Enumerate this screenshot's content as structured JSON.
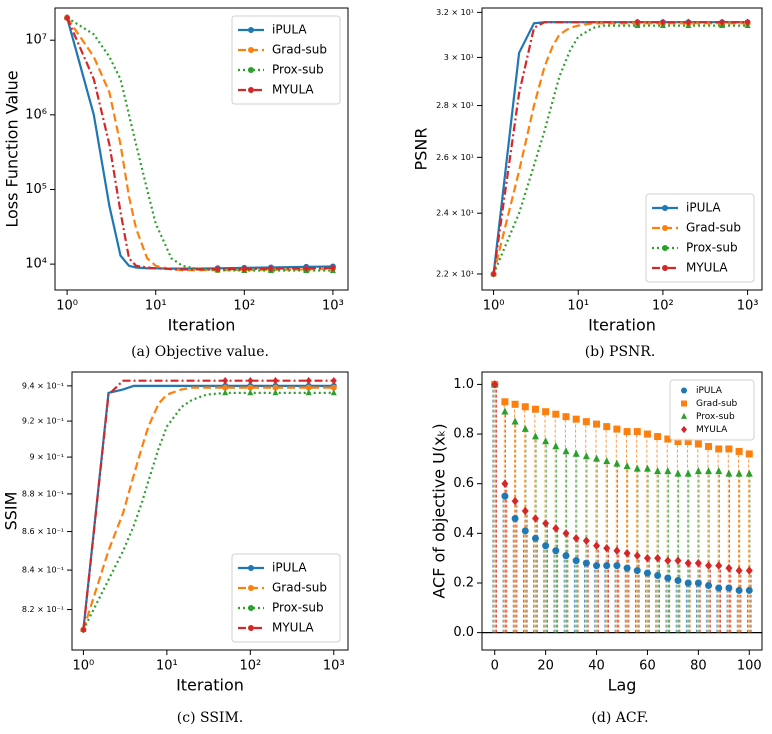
{
  "chart_data": [
    {
      "type": "line",
      "caption": "(a) Objective value.",
      "xlabel": "Iteration",
      "ylabel": "Loss Function Value",
      "log_x": true,
      "log_y": true,
      "legend": "upper right",
      "xlim": [
        0.73,
        1480
      ],
      "ylim": [
        4500,
        27000000
      ],
      "xticks": [
        {
          "value": 1,
          "label": "10⁰"
        },
        {
          "value": 10,
          "label": "10¹"
        },
        {
          "value": 100,
          "label": "10²"
        },
        {
          "value": 1000,
          "label": "10³"
        }
      ],
      "yticks": [
        {
          "value": 10000,
          "label": "10⁴"
        },
        {
          "value": 100000,
          "label": "10⁵"
        },
        {
          "value": 1000000,
          "label": "10⁶"
        },
        {
          "value": 10000000,
          "label": "10⁷"
        }
      ],
      "x": [
        1,
        2,
        3,
        4,
        5,
        6,
        8,
        10,
        15,
        20,
        30,
        50,
        100,
        200,
        500,
        1000
      ],
      "series": [
        {
          "name": "iPULA",
          "color": "#1f77b4",
          "linestyle": "solid",
          "marker": "o",
          "values": [
            20000000,
            1000000,
            60000,
            13000,
            9500,
            9000,
            8800,
            8800,
            8700,
            8700,
            8700,
            8800,
            8900,
            9000,
            9200,
            9300
          ]
        },
        {
          "name": "Grad-sub",
          "color": "#ff7f0e",
          "linestyle": "dashed",
          "marker": "o",
          "values": [
            20000000,
            6000000,
            2000000,
            400000,
            80000,
            30000,
            12000,
            9500,
            8500,
            8300,
            8300,
            8300,
            8400,
            8400,
            8500,
            8600
          ]
        },
        {
          "name": "Prox-sub",
          "color": "#2ca02c",
          "linestyle": "dotted",
          "marker": "^",
          "values": [
            20000000,
            12000000,
            6000000,
            3000000,
            1000000,
            400000,
            100000,
            35000,
            12000,
            9500,
            8600,
            8300,
            8200,
            8200,
            8200,
            8200
          ]
        },
        {
          "name": "MYULA",
          "color": "#d62728",
          "linestyle": "dashdot",
          "marker": "D",
          "values": [
            20000000,
            3000000,
            400000,
            50000,
            12000,
            9500,
            9000,
            8800,
            8600,
            8500,
            8500,
            8600,
            8600,
            8700,
            8800,
            8900
          ]
        }
      ]
    },
    {
      "type": "line",
      "caption": "(b) PSNR.",
      "xlabel": "Iteration",
      "ylabel": "PSNR",
      "log_x": true,
      "log_y": true,
      "legend": "lower right",
      "xlim": [
        0.73,
        1480
      ],
      "ylim": [
        21.5,
        32.2
      ],
      "xticks": [
        {
          "value": 1,
          "label": "10⁰"
        },
        {
          "value": 10,
          "label": "10¹"
        },
        {
          "value": 100,
          "label": "10²"
        },
        {
          "value": 1000,
          "label": "10³"
        }
      ],
      "yticks": [
        {
          "value": 22,
          "label": "2.2 × 10¹"
        },
        {
          "value": 24,
          "label": "2.4 × 10¹"
        },
        {
          "value": 26,
          "label": "2.6 × 10¹"
        },
        {
          "value": 28,
          "label": "2.8 × 10¹"
        },
        {
          "value": 30,
          "label": "3 × 10¹"
        },
        {
          "value": 32,
          "label": "3.2 × 10¹"
        }
      ],
      "x": [
        1,
        2,
        3,
        4,
        5,
        6,
        8,
        10,
        15,
        20,
        30,
        50,
        100,
        200,
        500,
        1000
      ],
      "series": [
        {
          "name": "iPULA",
          "color": "#1f77b4",
          "linestyle": "solid",
          "marker": "o",
          "values": [
            22,
            30.2,
            31.5,
            31.55,
            31.55,
            31.55,
            31.55,
            31.55,
            31.55,
            31.55,
            31.55,
            31.55,
            31.55,
            31.55,
            31.55,
            31.55
          ]
        },
        {
          "name": "Grad-sub",
          "color": "#ff7f0e",
          "linestyle": "dashed",
          "marker": "o",
          "values": [
            22,
            25.5,
            28,
            29.6,
            30.5,
            31,
            31.3,
            31.4,
            31.5,
            31.5,
            31.5,
            31.5,
            31.5,
            31.5,
            31.5,
            31.5
          ]
        },
        {
          "name": "Prox-sub",
          "color": "#2ca02c",
          "linestyle": "dotted",
          "marker": "^",
          "values": [
            22,
            24,
            25.7,
            27,
            28.2,
            29.2,
            30.3,
            30.9,
            31.3,
            31.4,
            31.4,
            31.4,
            31.4,
            31.4,
            31.4,
            31.4
          ]
        },
        {
          "name": "MYULA",
          "color": "#d62728",
          "linestyle": "dashdot",
          "marker": "D",
          "values": [
            22,
            28.5,
            31.3,
            31.55,
            31.55,
            31.55,
            31.55,
            31.55,
            31.55,
            31.55,
            31.55,
            31.55,
            31.55,
            31.55,
            31.55,
            31.55
          ]
        }
      ]
    },
    {
      "type": "line",
      "caption": "(c) SSIM.",
      "xlabel": "Iteration",
      "ylabel": "SSIM",
      "log_x": true,
      "log_y": true,
      "legend": "lower right",
      "xlim": [
        0.73,
        1480
      ],
      "ylim": [
        0.8,
        0.948
      ],
      "xticks": [
        {
          "value": 1,
          "label": "10⁰"
        },
        {
          "value": 10,
          "label": "10¹"
        },
        {
          "value": 100,
          "label": "10²"
        },
        {
          "value": 1000,
          "label": "10³"
        }
      ],
      "yticks": [
        {
          "value": 0.82,
          "label": "8.2 × 10⁻¹"
        },
        {
          "value": 0.84,
          "label": "8.4 × 10⁻¹"
        },
        {
          "value": 0.86,
          "label": "8.6 × 10⁻¹"
        },
        {
          "value": 0.88,
          "label": "8.8 × 10⁻¹"
        },
        {
          "value": 0.9,
          "label": "9 × 10⁻¹"
        },
        {
          "value": 0.92,
          "label": "9.2 × 10⁻¹"
        },
        {
          "value": 0.94,
          "label": "9.4 × 10⁻¹"
        }
      ],
      "x": [
        1,
        2,
        3,
        4,
        5,
        6,
        8,
        10,
        15,
        20,
        30,
        50,
        100,
        200,
        500,
        1000
      ],
      "series": [
        {
          "name": "iPULA",
          "color": "#1f77b4",
          "linestyle": "solid",
          "marker": "o",
          "values": [
            0.81,
            0.936,
            0.938,
            0.94,
            0.94,
            0.94,
            0.94,
            0.94,
            0.94,
            0.94,
            0.94,
            0.94,
            0.94,
            0.94,
            0.94,
            0.94
          ]
        },
        {
          "name": "Grad-sub",
          "color": "#ff7f0e",
          "linestyle": "dashed",
          "marker": "o",
          "values": [
            0.81,
            0.85,
            0.87,
            0.89,
            0.905,
            0.917,
            0.93,
            0.935,
            0.938,
            0.939,
            0.939,
            0.939,
            0.939,
            0.939,
            0.939,
            0.939
          ]
        },
        {
          "name": "Prox-sub",
          "color": "#2ca02c",
          "linestyle": "dotted",
          "marker": "^",
          "values": [
            0.81,
            0.835,
            0.85,
            0.863,
            0.875,
            0.887,
            0.905,
            0.917,
            0.928,
            0.932,
            0.935,
            0.936,
            0.936,
            0.936,
            0.936,
            0.936
          ]
        },
        {
          "name": "MYULA",
          "color": "#d62728",
          "linestyle": "dashdot",
          "marker": "D",
          "values": [
            0.81,
            0.935,
            0.943,
            0.943,
            0.943,
            0.943,
            0.943,
            0.943,
            0.943,
            0.943,
            0.943,
            0.943,
            0.943,
            0.943,
            0.943,
            0.943
          ]
        }
      ]
    },
    {
      "type": "stem",
      "caption": "(d) ACF.",
      "xlabel": "Lag",
      "ylabel": "ACF of objective U(xₖ)",
      "log_x": false,
      "log_y": false,
      "legend": "upper right",
      "xlim": [
        -5,
        105
      ],
      "ylim": [
        -0.07,
        1.05
      ],
      "xticks": [
        0,
        20,
        40,
        60,
        80,
        100
      ],
      "yticks": [
        {
          "value": 0,
          "label": "0.0"
        },
        0.2,
        0.4,
        0.6,
        0.8,
        {
          "value": 1,
          "label": "1.0"
        }
      ],
      "x": [
        0,
        4,
        8,
        12,
        16,
        20,
        24,
        28,
        32,
        36,
        40,
        44,
        48,
        52,
        56,
        60,
        64,
        68,
        72,
        76,
        80,
        84,
        88,
        92,
        96,
        100
      ],
      "series": [
        {
          "name": "iPULA",
          "color": "#1f77b4",
          "marker": "o",
          "values": [
            1.0,
            0.55,
            0.46,
            0.41,
            0.38,
            0.35,
            0.33,
            0.31,
            0.29,
            0.28,
            0.27,
            0.27,
            0.27,
            0.26,
            0.25,
            0.24,
            0.23,
            0.22,
            0.21,
            0.2,
            0.2,
            0.19,
            0.18,
            0.18,
            0.17,
            0.17
          ]
        },
        {
          "name": "Grad-sub",
          "color": "#ff7f0e",
          "marker": "s",
          "values": [
            1.0,
            0.93,
            0.92,
            0.91,
            0.9,
            0.89,
            0.88,
            0.87,
            0.86,
            0.85,
            0.84,
            0.83,
            0.82,
            0.81,
            0.81,
            0.8,
            0.79,
            0.78,
            0.77,
            0.77,
            0.76,
            0.75,
            0.74,
            0.74,
            0.73,
            0.72
          ]
        },
        {
          "name": "Prox-sub",
          "color": "#2ca02c",
          "marker": "^",
          "values": [
            1.0,
            0.89,
            0.85,
            0.82,
            0.79,
            0.77,
            0.75,
            0.73,
            0.72,
            0.71,
            0.7,
            0.69,
            0.68,
            0.67,
            0.66,
            0.66,
            0.65,
            0.65,
            0.64,
            0.64,
            0.65,
            0.65,
            0.65,
            0.64,
            0.64,
            0.64
          ]
        },
        {
          "name": "MYULA",
          "color": "#d62728",
          "marker": "D",
          "values": [
            1.0,
            0.6,
            0.53,
            0.49,
            0.46,
            0.44,
            0.42,
            0.4,
            0.38,
            0.37,
            0.35,
            0.34,
            0.33,
            0.32,
            0.31,
            0.3,
            0.3,
            0.29,
            0.29,
            0.28,
            0.28,
            0.27,
            0.27,
            0.26,
            0.25,
            0.25
          ]
        }
      ]
    }
  ]
}
